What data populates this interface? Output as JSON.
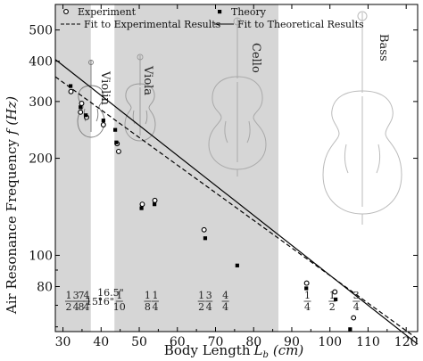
{
  "chart_data": {
    "type": "scatter",
    "x_scale": "linear",
    "y_scale": "log",
    "xlim": [
      28,
      123
    ],
    "ylim": [
      58,
      600
    ],
    "xticks": [
      30,
      40,
      50,
      60,
      70,
      80,
      90,
      100,
      110,
      120
    ],
    "yticks": [
      80,
      100,
      200,
      300,
      400,
      500
    ],
    "xlabel": {
      "text": "Body Length",
      "symbol": "L",
      "sub": "b",
      "unit": "(cm)"
    },
    "ylabel": {
      "text": "Air Resonance Frequency",
      "symbol": "f",
      "unit": "(Hz)"
    },
    "grid": false,
    "legend": {
      "position": "top",
      "entries": [
        {
          "label": "Experiment",
          "marker": "open-circle"
        },
        {
          "label": "Theory",
          "marker": "filled-square"
        },
        {
          "label": "Fit to Experimental Results",
          "line": "dashed"
        },
        {
          "label": "Fit to Theoretical Results",
          "line": "solid"
        }
      ]
    },
    "instrument_bands": [
      {
        "name": "Violin",
        "x_range": [
          28,
          37.3
        ],
        "shaded": true
      },
      {
        "name": "Viola",
        "x_range": [
          37.3,
          43.5
        ],
        "shaded": false
      },
      {
        "name": "Cello",
        "x_range": [
          43.5,
          86.5
        ],
        "shaded": true
      },
      {
        "name": "Bass",
        "x_range": [
          86.5,
          123
        ],
        "shaded": false
      }
    ],
    "size_labels": [
      {
        "label": "1/2",
        "kind": "fraction",
        "x": 31.5
      },
      {
        "label": "3/4",
        "kind": "fraction",
        "x": 33.4
      },
      {
        "label": "7/8",
        "kind": "fraction",
        "x": 34.8
      },
      {
        "label": "4/4",
        "kind": "fraction",
        "x": 36.2
      },
      {
        "label": "15\"",
        "kind": "text",
        "x": 38.2
      },
      {
        "label": "16\"",
        "kind": "text",
        "x": 41.2
      },
      {
        "label": "16.5\"",
        "kind": "text",
        "x": 42.5,
        "raised": true
      },
      {
        "label": "1/10",
        "kind": "fraction",
        "x": 44.8
      },
      {
        "label": "1/8",
        "kind": "fraction",
        "x": 52.2
      },
      {
        "label": "1/4",
        "kind": "fraction",
        "x": 54.2
      },
      {
        "label": "1/2",
        "kind": "fraction",
        "x": 66.3
      },
      {
        "label": "3/4",
        "kind": "fraction",
        "x": 68.3
      },
      {
        "label": "4/4",
        "kind": "fraction",
        "x": 72.6
      },
      {
        "label": "1/4",
        "kind": "fraction",
        "x": 94.1
      },
      {
        "label": "1/2",
        "kind": "fraction",
        "x": 100.6
      },
      {
        "label": "3/4",
        "kind": "fraction",
        "x": 106.9
      }
    ],
    "series": [
      {
        "name": "Experiment",
        "marker": "open-circle",
        "points": [
          [
            32.1,
            322
          ],
          [
            34.6,
            278
          ],
          [
            34.9,
            296
          ],
          [
            36.2,
            268
          ],
          [
            40.6,
            254
          ],
          [
            44.2,
            222
          ],
          [
            44.6,
            210
          ],
          [
            50.8,
            144
          ],
          [
            54.1,
            148
          ],
          [
            67.0,
            120
          ],
          [
            93.9,
            82
          ],
          [
            101.3,
            77
          ],
          [
            106.2,
            64
          ]
        ]
      },
      {
        "name": "Theory",
        "marker": "filled-square",
        "points": [
          [
            32.0,
            335
          ],
          [
            34.6,
            288
          ],
          [
            36.0,
            272
          ],
          [
            40.6,
            262
          ],
          [
            43.7,
            245
          ],
          [
            44.0,
            224
          ],
          [
            50.6,
            140
          ],
          [
            54.0,
            144
          ],
          [
            67.3,
            113
          ],
          [
            75.7,
            93
          ],
          [
            93.8,
            79
          ],
          [
            101.5,
            73
          ],
          [
            105.3,
            59
          ]
        ]
      },
      {
        "name": "Fit to Experimental Results",
        "line": "dashed",
        "points": [
          [
            28,
            358
          ],
          [
            123,
            55
          ]
        ]
      },
      {
        "name": "Fit to Theoretical Results",
        "line": "solid",
        "points": [
          [
            28,
            405
          ],
          [
            123,
            53
          ]
        ]
      }
    ]
  }
}
